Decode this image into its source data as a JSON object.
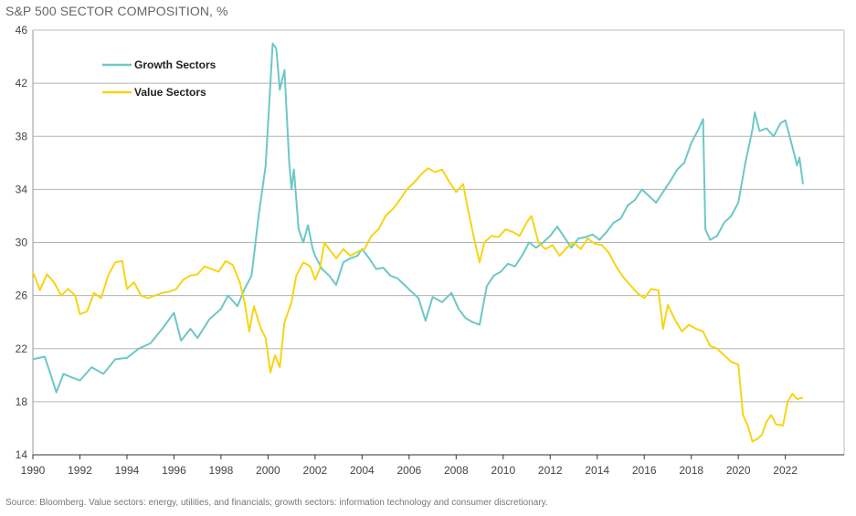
{
  "title": "S&P 500 SECTOR COMPOSITION, %",
  "source": "Source: Bloomberg. Value sectors: energy, utilities, and financials; growth sectors: information technology and consumer discretionary.",
  "chart_data": {
    "type": "line",
    "title": "S&P 500 SECTOR COMPOSITION, %",
    "xlabel": "",
    "ylabel": "",
    "xlim": [
      1990,
      2024.5
    ],
    "ylim": [
      14,
      46
    ],
    "x_ticks": [
      "1990",
      "1992",
      "1994",
      "1996",
      "1998",
      "2000",
      "2002",
      "2004",
      "2006",
      "2008",
      "2010",
      "2012",
      "2014",
      "2016",
      "2018",
      "2020",
      "2022"
    ],
    "y_ticks": [
      "14",
      "18",
      "22",
      "26",
      "30",
      "34",
      "38",
      "42",
      "46"
    ],
    "grid": "horizontal",
    "legend": "upper-left",
    "series": [
      {
        "name": "Growth Sectors",
        "color": "#6cc8c6",
        "points": [
          [
            1990.0,
            21.2
          ],
          [
            1990.5,
            21.4
          ],
          [
            1990.8,
            19.8
          ],
          [
            1991.0,
            18.7
          ],
          [
            1991.3,
            20.1
          ],
          [
            1991.7,
            19.8
          ],
          [
            1992.0,
            19.6
          ],
          [
            1992.5,
            20.6
          ],
          [
            1993.0,
            20.1
          ],
          [
            1993.5,
            21.2
          ],
          [
            1994.0,
            21.3
          ],
          [
            1994.5,
            22.0
          ],
          [
            1995.0,
            22.4
          ],
          [
            1995.5,
            23.5
          ],
          [
            1996.0,
            24.7
          ],
          [
            1996.3,
            22.6
          ],
          [
            1996.7,
            23.5
          ],
          [
            1997.0,
            22.8
          ],
          [
            1997.5,
            24.2
          ],
          [
            1998.0,
            25.0
          ],
          [
            1998.3,
            26.0
          ],
          [
            1998.7,
            25.2
          ],
          [
            1999.0,
            26.5
          ],
          [
            1999.3,
            27.5
          ],
          [
            1999.6,
            32.0
          ],
          [
            1999.9,
            35.8
          ],
          [
            2000.1,
            42.0
          ],
          [
            2000.2,
            45.0
          ],
          [
            2000.35,
            44.6
          ],
          [
            2000.5,
            41.5
          ],
          [
            2000.7,
            43.0
          ],
          [
            2000.9,
            36.0
          ],
          [
            2001.0,
            34.0
          ],
          [
            2001.1,
            35.5
          ],
          [
            2001.3,
            31.0
          ],
          [
            2001.5,
            30.0
          ],
          [
            2001.7,
            31.3
          ],
          [
            2001.9,
            29.5
          ],
          [
            2002.0,
            29.0
          ],
          [
            2002.3,
            28.0
          ],
          [
            2002.6,
            27.5
          ],
          [
            2002.9,
            26.8
          ],
          [
            2003.2,
            28.5
          ],
          [
            2003.5,
            28.8
          ],
          [
            2003.8,
            29.0
          ],
          [
            2004.0,
            29.5
          ],
          [
            2004.3,
            28.8
          ],
          [
            2004.6,
            28.0
          ],
          [
            2004.9,
            28.1
          ],
          [
            2005.2,
            27.5
          ],
          [
            2005.5,
            27.3
          ],
          [
            2005.8,
            26.8
          ],
          [
            2006.1,
            26.3
          ],
          [
            2006.4,
            25.8
          ],
          [
            2006.7,
            24.1
          ],
          [
            2007.0,
            25.9
          ],
          [
            2007.4,
            25.5
          ],
          [
            2007.8,
            26.2
          ],
          [
            2008.1,
            25.0
          ],
          [
            2008.4,
            24.3
          ],
          [
            2008.7,
            24.0
          ],
          [
            2009.0,
            23.8
          ],
          [
            2009.3,
            26.7
          ],
          [
            2009.6,
            27.5
          ],
          [
            2009.9,
            27.8
          ],
          [
            2010.2,
            28.4
          ],
          [
            2010.5,
            28.2
          ],
          [
            2010.8,
            29.0
          ],
          [
            2011.1,
            30.0
          ],
          [
            2011.4,
            29.6
          ],
          [
            2011.7,
            30.0
          ],
          [
            2012.0,
            30.5
          ],
          [
            2012.3,
            31.2
          ],
          [
            2012.6,
            30.4
          ],
          [
            2012.9,
            29.6
          ],
          [
            2013.2,
            30.3
          ],
          [
            2013.5,
            30.4
          ],
          [
            2013.8,
            30.6
          ],
          [
            2014.1,
            30.2
          ],
          [
            2014.4,
            30.8
          ],
          [
            2014.7,
            31.5
          ],
          [
            2015.0,
            31.8
          ],
          [
            2015.3,
            32.8
          ],
          [
            2015.6,
            33.2
          ],
          [
            2015.9,
            34.0
          ],
          [
            2016.2,
            33.5
          ],
          [
            2016.5,
            33.0
          ],
          [
            2016.8,
            33.8
          ],
          [
            2017.1,
            34.6
          ],
          [
            2017.4,
            35.5
          ],
          [
            2017.7,
            36.0
          ],
          [
            2018.0,
            37.5
          ],
          [
            2018.3,
            38.5
          ],
          [
            2018.5,
            39.3
          ],
          [
            2018.6,
            31.0
          ],
          [
            2018.8,
            30.2
          ],
          [
            2019.1,
            30.5
          ],
          [
            2019.4,
            31.5
          ],
          [
            2019.7,
            32.0
          ],
          [
            2020.0,
            33.0
          ],
          [
            2020.3,
            36.0
          ],
          [
            2020.6,
            38.5
          ],
          [
            2020.7,
            39.8
          ],
          [
            2020.9,
            38.4
          ],
          [
            2021.2,
            38.6
          ],
          [
            2021.5,
            38.0
          ],
          [
            2021.8,
            39.0
          ],
          [
            2022.0,
            39.2
          ],
          [
            2022.3,
            37.2
          ],
          [
            2022.5,
            35.8
          ],
          [
            2022.6,
            36.4
          ],
          [
            2022.75,
            34.4
          ]
        ]
      },
      {
        "name": "Value Sectors",
        "color": "#f7d414",
        "points": [
          [
            1990.0,
            27.8
          ],
          [
            1990.3,
            26.4
          ],
          [
            1990.6,
            27.6
          ],
          [
            1990.9,
            27.0
          ],
          [
            1991.2,
            26.0
          ],
          [
            1991.5,
            26.5
          ],
          [
            1991.8,
            26.0
          ],
          [
            1992.0,
            24.6
          ],
          [
            1992.3,
            24.8
          ],
          [
            1992.6,
            26.2
          ],
          [
            1992.9,
            25.8
          ],
          [
            1993.2,
            27.5
          ],
          [
            1993.5,
            28.5
          ],
          [
            1993.8,
            28.6
          ],
          [
            1994.0,
            26.5
          ],
          [
            1994.3,
            27.0
          ],
          [
            1994.6,
            26.0
          ],
          [
            1994.9,
            25.8
          ],
          [
            1995.2,
            26.0
          ],
          [
            1995.5,
            26.2
          ],
          [
            1995.8,
            26.3
          ],
          [
            1996.1,
            26.5
          ],
          [
            1996.4,
            27.2
          ],
          [
            1996.7,
            27.5
          ],
          [
            1997.0,
            27.6
          ],
          [
            1997.3,
            28.2
          ],
          [
            1997.6,
            28.0
          ],
          [
            1997.9,
            27.8
          ],
          [
            1998.2,
            28.6
          ],
          [
            1998.5,
            28.3
          ],
          [
            1998.8,
            27.0
          ],
          [
            1999.0,
            25.5
          ],
          [
            1999.2,
            23.3
          ],
          [
            1999.4,
            25.2
          ],
          [
            1999.7,
            23.5
          ],
          [
            1999.9,
            22.8
          ],
          [
            2000.1,
            20.2
          ],
          [
            2000.3,
            21.5
          ],
          [
            2000.5,
            20.6
          ],
          [
            2000.7,
            24.0
          ],
          [
            2001.0,
            25.5
          ],
          [
            2001.2,
            27.5
          ],
          [
            2001.5,
            28.5
          ],
          [
            2001.8,
            28.2
          ],
          [
            2002.0,
            27.2
          ],
          [
            2002.2,
            28.0
          ],
          [
            2002.4,
            30.0
          ],
          [
            2002.6,
            29.5
          ],
          [
            2002.9,
            28.8
          ],
          [
            2003.2,
            29.5
          ],
          [
            2003.5,
            29.0
          ],
          [
            2003.8,
            29.3
          ],
          [
            2004.1,
            29.5
          ],
          [
            2004.4,
            30.5
          ],
          [
            2004.7,
            31.0
          ],
          [
            2005.0,
            32.0
          ],
          [
            2005.3,
            32.5
          ],
          [
            2005.6,
            33.2
          ],
          [
            2005.9,
            34.0
          ],
          [
            2006.2,
            34.5
          ],
          [
            2006.5,
            35.1
          ],
          [
            2006.8,
            35.6
          ],
          [
            2007.1,
            35.3
          ],
          [
            2007.4,
            35.5
          ],
          [
            2007.7,
            34.6
          ],
          [
            2008.0,
            33.8
          ],
          [
            2008.3,
            34.4
          ],
          [
            2008.5,
            32.5
          ],
          [
            2008.8,
            30.0
          ],
          [
            2009.0,
            28.5
          ],
          [
            2009.2,
            30.0
          ],
          [
            2009.5,
            30.5
          ],
          [
            2009.8,
            30.4
          ],
          [
            2010.1,
            31.0
          ],
          [
            2010.4,
            30.8
          ],
          [
            2010.7,
            30.5
          ],
          [
            2011.0,
            31.5
          ],
          [
            2011.2,
            32.0
          ],
          [
            2011.5,
            30.0
          ],
          [
            2011.8,
            29.5
          ],
          [
            2012.1,
            29.8
          ],
          [
            2012.4,
            29.0
          ],
          [
            2012.7,
            29.6
          ],
          [
            2013.0,
            30.0
          ],
          [
            2013.3,
            29.5
          ],
          [
            2013.6,
            30.3
          ],
          [
            2013.9,
            29.9
          ],
          [
            2014.2,
            29.8
          ],
          [
            2014.5,
            29.2
          ],
          [
            2014.8,
            28.2
          ],
          [
            2015.1,
            27.4
          ],
          [
            2015.4,
            26.8
          ],
          [
            2015.7,
            26.2
          ],
          [
            2016.0,
            25.8
          ],
          [
            2016.3,
            26.5
          ],
          [
            2016.6,
            26.4
          ],
          [
            2016.8,
            23.5
          ],
          [
            2017.0,
            25.3
          ],
          [
            2017.3,
            24.2
          ],
          [
            2017.6,
            23.3
          ],
          [
            2017.9,
            23.8
          ],
          [
            2018.2,
            23.5
          ],
          [
            2018.5,
            23.3
          ],
          [
            2018.8,
            22.2
          ],
          [
            2019.1,
            22.0
          ],
          [
            2019.4,
            21.5
          ],
          [
            2019.7,
            21.0
          ],
          [
            2020.0,
            20.8
          ],
          [
            2020.2,
            17.0
          ],
          [
            2020.4,
            16.2
          ],
          [
            2020.6,
            15.0
          ],
          [
            2020.8,
            15.2
          ],
          [
            2021.0,
            15.5
          ],
          [
            2021.2,
            16.5
          ],
          [
            2021.4,
            17.0
          ],
          [
            2021.6,
            16.3
          ],
          [
            2021.9,
            16.2
          ],
          [
            2022.1,
            18.0
          ],
          [
            2022.3,
            18.6
          ],
          [
            2022.5,
            18.2
          ],
          [
            2022.75,
            18.3
          ]
        ]
      }
    ]
  }
}
